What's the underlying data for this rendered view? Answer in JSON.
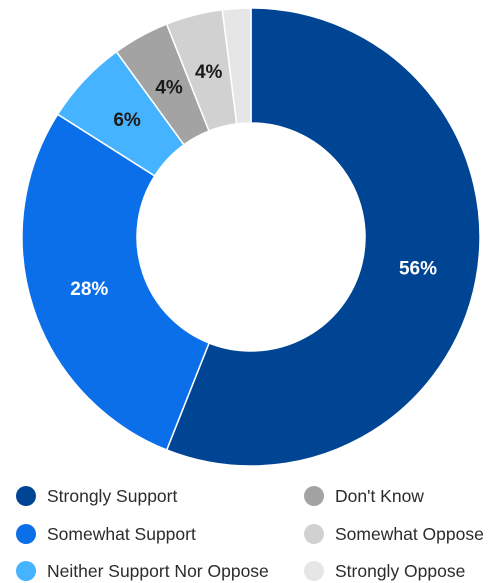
{
  "chart_data": {
    "type": "pie",
    "donut": true,
    "title": "",
    "slices": [
      {
        "label": "Strongly Support",
        "value": 56,
        "display": "56%",
        "color": "#004494",
        "label_color": "#ffffff"
      },
      {
        "label": "Somewhat Support",
        "value": 28,
        "display": "28%",
        "color": "#0A6FE8",
        "label_color": "#ffffff"
      },
      {
        "label": "Neither Support Nor Oppose",
        "value": 6,
        "display": "6%",
        "color": "#45B3FF",
        "label_color": "#1a1a1a"
      },
      {
        "label": "Don't Know",
        "value": 4,
        "display": "4%",
        "color": "#A3A3A3",
        "label_color": "#1a1a1a"
      },
      {
        "label": "Somewhat Oppose",
        "value": 4,
        "display": "4%",
        "color": "#D1D1D1",
        "label_color": "#1a1a1a"
      },
      {
        "label": "Strongly Oppose",
        "value": 2,
        "display": "",
        "color": "#E6E6E6",
        "label_color": "#1a1a1a"
      }
    ],
    "legend_position": "bottom"
  }
}
